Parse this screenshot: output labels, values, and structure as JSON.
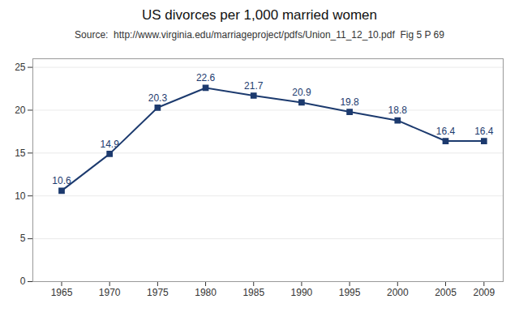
{
  "chart_data": {
    "type": "line",
    "title": "US divorces per 1,000 married women",
    "subtitle": "Source:  http://www.virginia.edu/marriageproject/pdfs/Union_11_12_10.pdf  Fig 5 P 69",
    "x": [
      1965,
      1970,
      1975,
      1980,
      1985,
      1990,
      1995,
      2000,
      2005,
      2009
    ],
    "values": [
      10.6,
      14.9,
      20.3,
      22.6,
      21.7,
      20.9,
      19.8,
      18.8,
      16.4,
      16.4
    ],
    "color": "#1C3A6E",
    "marker": "square",
    "data_labels": true,
    "xlim": [
      1962,
      2011
    ],
    "xticks": [
      1965,
      1970,
      1975,
      1980,
      1985,
      1990,
      1995,
      2000,
      2005,
      2009
    ],
    "ylim": [
      0,
      26
    ],
    "yticks": [
      0,
      5,
      10,
      15,
      20,
      25
    ],
    "grid": "y"
  }
}
